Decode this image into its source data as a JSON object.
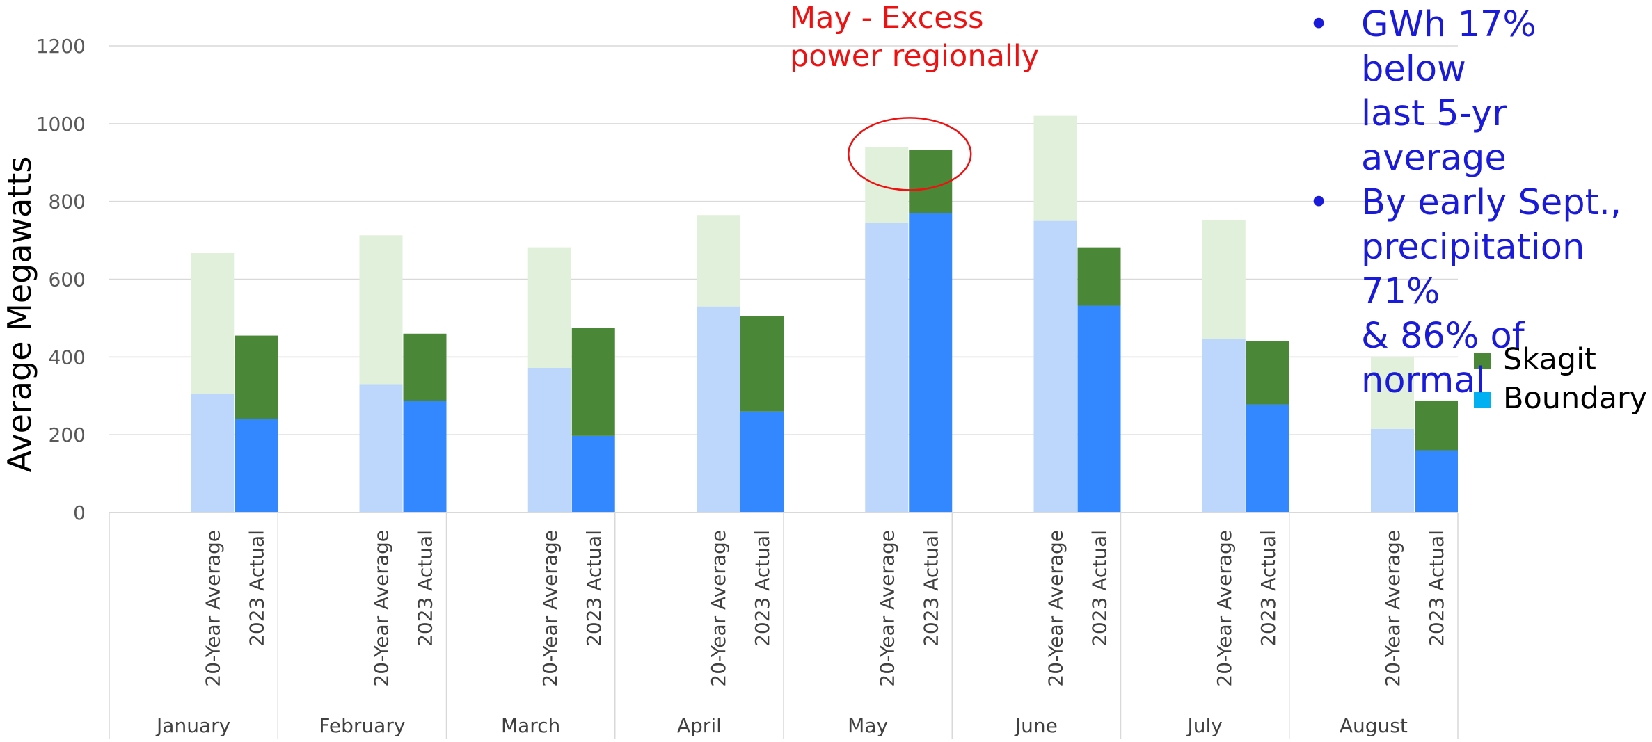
{
  "chart_data": {
    "type": "bar",
    "stacked": true,
    "ylabel": "Average Megawatts",
    "ylim": [
      0,
      1200
    ],
    "yticks": [
      0,
      200,
      400,
      600,
      800,
      1000,
      1200
    ],
    "grid": true,
    "groups": [
      "January",
      "February",
      "March",
      "April",
      "May",
      "June",
      "July",
      "August"
    ],
    "bar_labels": [
      "20-Year Average",
      "2023 Actual"
    ],
    "series": [
      {
        "name": "Boundary",
        "colors": {
          "20-Year Average": "#bdd7fc",
          "2023 Actual": "#3388ff"
        },
        "legend_color": "#00b0f0",
        "values": {
          "20-Year Average": [
            305,
            330,
            372,
            530,
            745,
            750,
            447,
            215
          ],
          "2023 Actual": [
            240,
            287,
            197,
            260,
            770,
            532,
            278,
            160
          ]
        }
      },
      {
        "name": "Skagit",
        "colors": {
          "20-Year Average": "#e0f0da",
          "2023 Actual": "#4a8737"
        },
        "legend_color": "#4a8737",
        "values": {
          "20-Year Average": [
            362,
            383,
            310,
            235,
            195,
            270,
            305,
            185
          ],
          "2023 Actual": [
            215,
            173,
            277,
            245,
            162,
            150,
            163,
            128
          ]
        }
      }
    ],
    "legend_position": "right",
    "annotation": {
      "text_lines": [
        "May - Excess",
        "power regionally"
      ],
      "color": "#ee1111",
      "target": "May"
    }
  },
  "notes": [
    [
      "GWh 17% below",
      "last 5-yr average"
    ],
    [
      "By early Sept.,",
      "precipitation 71%",
      "& 86% of normal"
    ]
  ]
}
